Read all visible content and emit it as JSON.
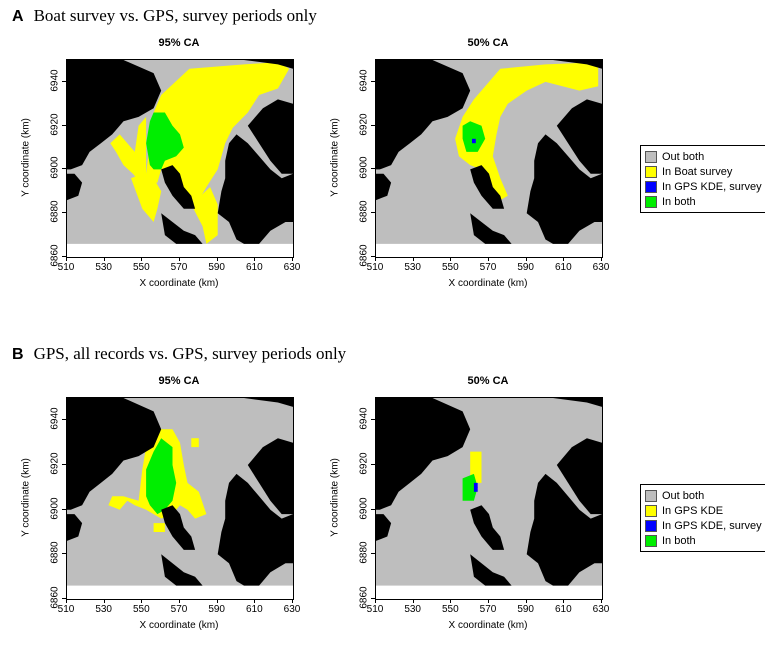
{
  "panels": [
    {
      "letter": "A",
      "heading": "Boat survey vs. GPS, survey periods only",
      "legend": [
        {
          "label": "Out both",
          "color": "#bebebe"
        },
        {
          "label": "In Boat survey",
          "color": "#ffff00"
        },
        {
          "label": "In GPS KDE, survey",
          "color": "#0000ff"
        },
        {
          "label": "In both",
          "color": "#00ee00"
        }
      ]
    },
    {
      "letter": "B",
      "heading": "GPS, all records vs. GPS, survey periods only",
      "legend": [
        {
          "label": "Out both",
          "color": "#bebebe"
        },
        {
          "label": "In GPS KDE",
          "color": "#ffff00"
        },
        {
          "label": "In GPS KDE, survey",
          "color": "#0000ff"
        },
        {
          "label": "In both",
          "color": "#00ee00"
        }
      ]
    }
  ],
  "chart_data": [
    {
      "type": "heatmap",
      "panel": "A",
      "title": "95% CA",
      "xlabel": "X coordinate (km)",
      "ylabel": "Y coordinate (km)",
      "xlim": [
        510,
        630
      ],
      "ylim": [
        6860,
        6950
      ],
      "xticks": [
        510,
        530,
        550,
        570,
        590,
        610,
        630
      ],
      "yticks": [
        6860,
        6880,
        6900,
        6920,
        6940
      ],
      "categories": [
        "Out both",
        "In Boat survey",
        "In GPS KDE, survey",
        "In both"
      ],
      "regions": [
        {
          "category": "In Boat survey",
          "polygon": [
            [
              552,
              6898
            ],
            [
              556,
              6926
            ],
            [
              560,
              6934
            ],
            [
              575,
              6946
            ],
            [
              604,
              6948
            ],
            [
              622,
              6949
            ],
            [
              628,
              6946
            ],
            [
              622,
              6937
            ],
            [
              612,
              6934
            ],
            [
              606,
              6926
            ],
            [
              598,
              6919
            ],
            [
              594,
              6912
            ],
            [
              590,
              6900
            ],
            [
              584,
              6892
            ],
            [
              580,
              6886
            ],
            [
              574,
              6884
            ],
            [
              568,
              6893
            ],
            [
              564,
              6900
            ],
            [
              560,
              6900
            ],
            [
              558,
              6894
            ],
            [
              550,
              6893
            ],
            [
              545,
              6898
            ],
            [
              540,
              6902
            ],
            [
              536,
              6908
            ],
            [
              533,
              6912
            ],
            [
              538,
              6916
            ],
            [
              546,
              6908
            ],
            [
              548,
              6920
            ],
            [
              552,
              6924
            ]
          ]
        },
        {
          "category": "In Boat survey",
          "polygon": [
            [
              544,
              6896
            ],
            [
              550,
              6882
            ],
            [
              556,
              6876
            ],
            [
              558,
              6882
            ],
            [
              560,
              6890
            ],
            [
              556,
              6896
            ],
            [
              550,
              6898
            ]
          ]
        },
        {
          "category": "In Boat survey",
          "polygon": [
            [
              576,
              6884
            ],
            [
              582,
              6874
            ],
            [
              584,
              6866
            ],
            [
              590,
              6870
            ],
            [
              590,
              6884
            ],
            [
              586,
              6892
            ]
          ]
        },
        {
          "category": "In both",
          "polygon": [
            [
              554,
              6902
            ],
            [
              552,
              6912
            ],
            [
              554,
              6922
            ],
            [
              556,
              6926
            ],
            [
              562,
              6926
            ],
            [
              566,
              6920
            ],
            [
              570,
              6916
            ],
            [
              572,
              6910
            ],
            [
              568,
              6906
            ],
            [
              562,
              6904
            ],
            [
              560,
              6900
            ],
            [
              556,
              6900
            ]
          ]
        }
      ]
    },
    {
      "type": "heatmap",
      "panel": "A",
      "title": "50% CA",
      "xlabel": "X coordinate (km)",
      "ylabel": "Y coordinate (km)",
      "xlim": [
        510,
        630
      ],
      "ylim": [
        6860,
        6950
      ],
      "xticks": [
        510,
        530,
        550,
        570,
        590,
        610,
        630
      ],
      "yticks": [
        6860,
        6880,
        6900,
        6920,
        6940
      ],
      "categories": [
        "Out both",
        "In Boat survey",
        "In GPS KDE, survey",
        "In both"
      ],
      "regions": [
        {
          "category": "In Boat survey",
          "polygon": [
            [
              556,
              6924
            ],
            [
              562,
              6932
            ],
            [
              570,
              6940
            ],
            [
              576,
              6946
            ],
            [
              600,
              6948
            ],
            [
              628,
              6949
            ],
            [
              628,
              6938
            ],
            [
              618,
              6936
            ],
            [
              600,
              6940
            ],
            [
              590,
              6936
            ],
            [
              580,
              6930
            ],
            [
              576,
              6924
            ],
            [
              574,
              6916
            ],
            [
              572,
              6906
            ],
            [
              576,
              6896
            ],
            [
              580,
              6888
            ],
            [
              576,
              6886
            ],
            [
              570,
              6892
            ],
            [
              566,
              6900
            ],
            [
              560,
              6902
            ],
            [
              554,
              6906
            ],
            [
              552,
              6914
            ]
          ]
        },
        {
          "category": "In both",
          "polygon": [
            [
              556,
              6914
            ],
            [
              556,
              6920
            ],
            [
              560,
              6922
            ],
            [
              566,
              6920
            ],
            [
              568,
              6914
            ],
            [
              564,
              6908
            ],
            [
              558,
              6908
            ]
          ]
        },
        {
          "category": "In GPS KDE, survey",
          "polygon": [
            [
              561,
              6912
            ],
            [
              561,
              6914
            ],
            [
              563,
              6914
            ],
            [
              563,
              6912
            ]
          ]
        }
      ]
    },
    {
      "type": "heatmap",
      "panel": "B",
      "title": "95% CA",
      "xlabel": "X coordinate (km)",
      "ylabel": "Y coordinate (km)",
      "xlim": [
        510,
        630
      ],
      "ylim": [
        6860,
        6950
      ],
      "xticks": [
        510,
        530,
        550,
        570,
        590,
        610,
        630
      ],
      "yticks": [
        6860,
        6880,
        6900,
        6920,
        6940
      ],
      "categories": [
        "Out both",
        "In GPS KDE",
        "In GPS KDE, survey",
        "In both"
      ],
      "regions": [
        {
          "category": "In GPS KDE",
          "polygon": [
            [
              548,
              6904
            ],
            [
              550,
              6918
            ],
            [
              552,
              6928
            ],
            [
              558,
              6936
            ],
            [
              566,
              6936
            ],
            [
              570,
              6930
            ],
            [
              572,
              6920
            ],
            [
              574,
              6912
            ],
            [
              580,
              6908
            ],
            [
              584,
              6898
            ],
            [
              578,
              6896
            ],
            [
              574,
              6900
            ],
            [
              570,
              6902
            ],
            [
              566,
              6898
            ],
            [
              560,
              6896
            ],
            [
              556,
              6898
            ],
            [
              552,
              6900
            ],
            [
              546,
              6902
            ],
            [
              542,
              6904
            ],
            [
              538,
              6900
            ],
            [
              532,
              6902
            ],
            [
              534,
              6906
            ],
            [
              540,
              6906
            ]
          ]
        },
        {
          "category": "In GPS KDE",
          "polygon": [
            [
              556,
              6890
            ],
            [
              556,
              6894
            ],
            [
              562,
              6894
            ],
            [
              562,
              6890
            ]
          ]
        },
        {
          "category": "In GPS KDE",
          "polygon": [
            [
              576,
              6928
            ],
            [
              576,
              6932
            ],
            [
              580,
              6932
            ],
            [
              580,
              6928
            ]
          ]
        },
        {
          "category": "In both",
          "polygon": [
            [
              552,
              6906
            ],
            [
              552,
              6918
            ],
            [
              556,
              6926
            ],
            [
              560,
              6932
            ],
            [
              566,
              6928
            ],
            [
              566,
              6920
            ],
            [
              568,
              6912
            ],
            [
              566,
              6904
            ],
            [
              562,
              6900
            ],
            [
              558,
              6898
            ],
            [
              554,
              6902
            ]
          ]
        }
      ]
    },
    {
      "type": "heatmap",
      "panel": "B",
      "title": "50% CA",
      "xlabel": "X coordinate (km)",
      "ylabel": "Y coordinate (km)",
      "xlim": [
        510,
        630
      ],
      "ylim": [
        6860,
        6950
      ],
      "xticks": [
        510,
        530,
        550,
        570,
        590,
        610,
        630
      ],
      "yticks": [
        6860,
        6880,
        6900,
        6920,
        6940
      ],
      "categories": [
        "Out both",
        "In GPS KDE",
        "In GPS KDE, survey",
        "In both"
      ],
      "regions": [
        {
          "category": "In GPS KDE",
          "polygon": [
            [
              560,
              6912
            ],
            [
              560,
              6926
            ],
            [
              566,
              6926
            ],
            [
              566,
              6912
            ]
          ]
        },
        {
          "category": "In both",
          "polygon": [
            [
              556,
              6904
            ],
            [
              556,
              6914
            ],
            [
              562,
              6916
            ],
            [
              564,
              6910
            ],
            [
              562,
              6904
            ]
          ]
        },
        {
          "category": "In GPS KDE, survey",
          "polygon": [
            [
              562,
              6908
            ],
            [
              562,
              6912
            ],
            [
              564,
              6912
            ],
            [
              564,
              6908
            ]
          ]
        }
      ]
    }
  ]
}
